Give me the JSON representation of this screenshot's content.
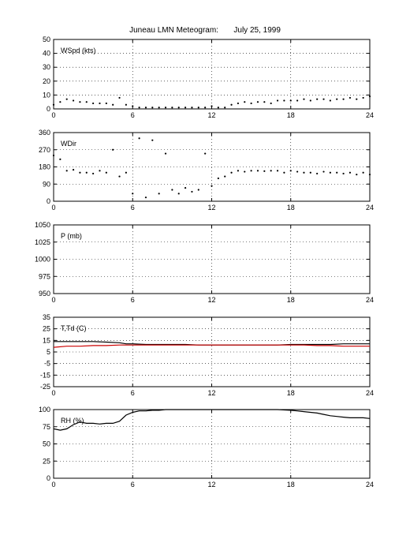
{
  "title": "Juneau LMN Meteogram:       July 25, 1999",
  "colors": {
    "line": "#000000",
    "dewpoint": "#cc0000",
    "grid": "#000000"
  },
  "chart_data": [
    {
      "type": "scatter",
      "label": "WSpd (kts)",
      "xlim": [
        0,
        24
      ],
      "ylim": [
        0,
        50
      ],
      "xticks": [
        0,
        6,
        12,
        18,
        24
      ],
      "yticks": [
        0,
        10,
        20,
        30,
        40,
        50
      ],
      "grid": true,
      "series": [
        {
          "x": [
            0,
            0.5,
            1,
            1.5,
            2,
            2.5,
            3,
            3.5,
            4,
            4.5,
            5,
            5.5,
            6,
            6.5,
            7,
            7.5,
            8,
            8.5,
            9,
            9.5,
            10,
            10.5,
            11,
            11.5,
            12,
            12.5,
            13,
            13.5,
            14,
            14.5,
            15,
            15.5,
            16,
            16.5,
            17,
            17.5,
            18,
            18.5,
            19,
            19.5,
            20,
            20.5,
            21,
            21.5,
            22,
            22.5,
            23,
            23.5,
            24
          ],
          "y": [
            3,
            5,
            7,
            6,
            5,
            5,
            4,
            4,
            4,
            3,
            8,
            3,
            2,
            1,
            1,
            1,
            1,
            1,
            1,
            1,
            1,
            1,
            1,
            1,
            2,
            1,
            1,
            3,
            4,
            5,
            4,
            5,
            5,
            4,
            6,
            6,
            6,
            6,
            7,
            6,
            7,
            7,
            6,
            7,
            7,
            8,
            7,
            8,
            9
          ]
        }
      ]
    },
    {
      "type": "scatter",
      "label": "WDir",
      "xlim": [
        0,
        24
      ],
      "ylim": [
        0,
        360
      ],
      "xticks": [
        0,
        6,
        12,
        18,
        24
      ],
      "yticks": [
        0,
        90,
        180,
        270,
        360
      ],
      "grid": true,
      "series": [
        {
          "x": [
            0,
            0.5,
            1,
            1.5,
            2,
            2.5,
            3,
            3.5,
            4,
            4.5,
            5,
            5.5,
            6,
            6.5,
            7,
            7.5,
            8,
            8.5,
            9,
            9.5,
            10,
            10.5,
            11,
            11.5,
            12,
            12.5,
            13,
            13.5,
            14,
            14.5,
            15,
            15.5,
            16,
            16.5,
            17,
            17.5,
            18,
            18.5,
            19,
            19.5,
            20,
            20.5,
            21,
            21.5,
            22,
            22.5,
            23,
            23.5,
            24
          ],
          "y": [
            240,
            220,
            160,
            165,
            150,
            150,
            145,
            160,
            150,
            270,
            130,
            150,
            40,
            330,
            20,
            320,
            40,
            250,
            60,
            40,
            70,
            50,
            60,
            250,
            80,
            120,
            130,
            150,
            160,
            155,
            160,
            160,
            158,
            160,
            160,
            150,
            160,
            155,
            150,
            150,
            145,
            155,
            150,
            150,
            145,
            150,
            140,
            150,
            140
          ]
        }
      ]
    },
    {
      "type": "line",
      "label": "P (mb)",
      "xlim": [
        0,
        24
      ],
      "ylim": [
        950,
        1050
      ],
      "xticks": [
        0,
        6,
        12,
        18,
        24
      ],
      "yticks": [
        950,
        975,
        1000,
        1025,
        1050
      ],
      "grid": true,
      "series": []
    },
    {
      "type": "line",
      "label": "T,Td (C)",
      "xlim": [
        0,
        24
      ],
      "ylim": [
        -25,
        35
      ],
      "xticks": [
        0,
        6,
        12,
        18,
        24
      ],
      "yticks": [
        -25,
        -15,
        -5,
        5,
        15,
        25,
        35
      ],
      "grid": true,
      "series": [
        {
          "x": [
            0,
            1,
            2,
            3,
            4,
            5,
            5.5,
            6,
            7,
            8,
            9,
            10,
            11,
            12,
            13,
            14,
            15,
            16,
            17,
            18,
            19,
            20,
            21,
            22,
            23,
            24
          ],
          "y": [
            14,
            14,
            14,
            14,
            13.5,
            13,
            12,
            12,
            11.5,
            11.5,
            11.5,
            11.5,
            11,
            11,
            11,
            11,
            11,
            11,
            11,
            11.5,
            11.5,
            11.5,
            11.5,
            12,
            12,
            12
          ]
        },
        {
          "x": [
            0,
            1,
            2,
            3,
            4,
            5,
            5.5,
            6,
            7,
            8,
            9,
            10,
            11,
            12,
            13,
            14,
            15,
            16,
            17,
            18,
            19,
            20,
            21,
            22,
            23,
            24
          ],
          "y": [
            9,
            10,
            10,
            10.5,
            10.5,
            11,
            11,
            11,
            11,
            11,
            11,
            11,
            11,
            11,
            11,
            11,
            11,
            11,
            11,
            11,
            11,
            10.5,
            10.5,
            10,
            10,
            10
          ]
        }
      ]
    },
    {
      "type": "line",
      "label": "RH (%)",
      "xlim": [
        0,
        24
      ],
      "ylim": [
        0,
        100
      ],
      "xticks": [
        0,
        6,
        12,
        18,
        24
      ],
      "yticks": [
        0,
        25,
        50,
        75,
        100
      ],
      "grid": true,
      "series": [
        {
          "x": [
            0,
            0.5,
            1,
            1.5,
            2,
            2.5,
            3,
            3.5,
            4,
            4.5,
            5,
            5.5,
            6,
            6.5,
            7,
            7.5,
            8,
            8.5,
            9,
            9.5,
            10,
            11,
            12,
            13,
            14,
            15,
            16,
            17,
            18,
            18.5,
            19,
            19.5,
            20,
            20.5,
            21,
            21.5,
            22,
            22.5,
            23,
            23.5,
            24
          ],
          "y": [
            72,
            70,
            72,
            78,
            82,
            80,
            80,
            79,
            80,
            80,
            83,
            92,
            96,
            98,
            98,
            99,
            99,
            100,
            100,
            100,
            100,
            100,
            100,
            100,
            100,
            100,
            100,
            100,
            99,
            98,
            97,
            96,
            95,
            93,
            91,
            90,
            89,
            88,
            88,
            88,
            87
          ]
        }
      ]
    }
  ]
}
